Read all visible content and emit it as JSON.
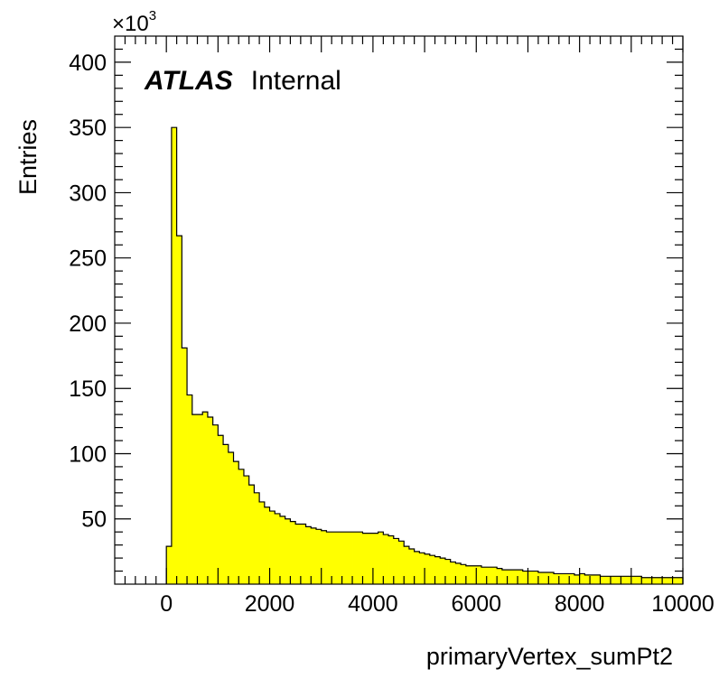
{
  "chart_data": {
    "type": "bar",
    "histogram_style": "step-filled",
    "fill_color": "#ffff00",
    "line_color": "#000000",
    "xlabel": "primaryVertex_sumPt2",
    "ylabel": "Entries",
    "y_exponent_label": "×10",
    "y_exponent_power": "3",
    "xlim": [
      -1000,
      10000
    ],
    "ylim": [
      0,
      420
    ],
    "x_ticks": [
      0,
      2000,
      4000,
      6000,
      8000,
      10000
    ],
    "x_tick_labels": [
      "0",
      "2000",
      "4000",
      "6000",
      "8000",
      "10000"
    ],
    "y_ticks": [
      50,
      100,
      150,
      200,
      250,
      300,
      350,
      400
    ],
    "y_tick_labels": [
      "50",
      "100",
      "150",
      "200",
      "250",
      "300",
      "350",
      "400"
    ],
    "bin_width": 100,
    "bin_start": 0,
    "values": [
      29,
      350,
      267,
      181,
      145,
      130,
      130,
      132,
      128,
      122,
      114,
      107,
      101,
      94,
      88,
      83,
      76,
      70,
      63,
      59,
      56,
      54,
      52,
      50,
      48,
      46,
      46,
      44,
      43,
      42,
      41,
      40,
      40,
      40,
      40,
      40,
      40,
      40,
      39,
      39,
      39,
      40,
      38,
      37,
      35,
      33,
      29,
      27,
      25,
      24,
      23,
      22,
      21,
      20,
      19,
      17,
      16,
      15,
      14,
      14,
      14,
      13,
      13,
      13,
      12,
      11,
      11,
      11,
      11,
      10,
      10,
      10,
      9,
      9,
      9,
      8,
      8,
      8,
      8,
      7,
      8,
      7,
      7,
      7,
      6,
      6,
      6,
      6,
      6,
      6,
      6,
      6,
      5,
      5,
      5,
      5,
      5,
      5,
      5,
      5
    ]
  },
  "annotation": {
    "atlas": "ATLAS",
    "status": "Internal"
  }
}
